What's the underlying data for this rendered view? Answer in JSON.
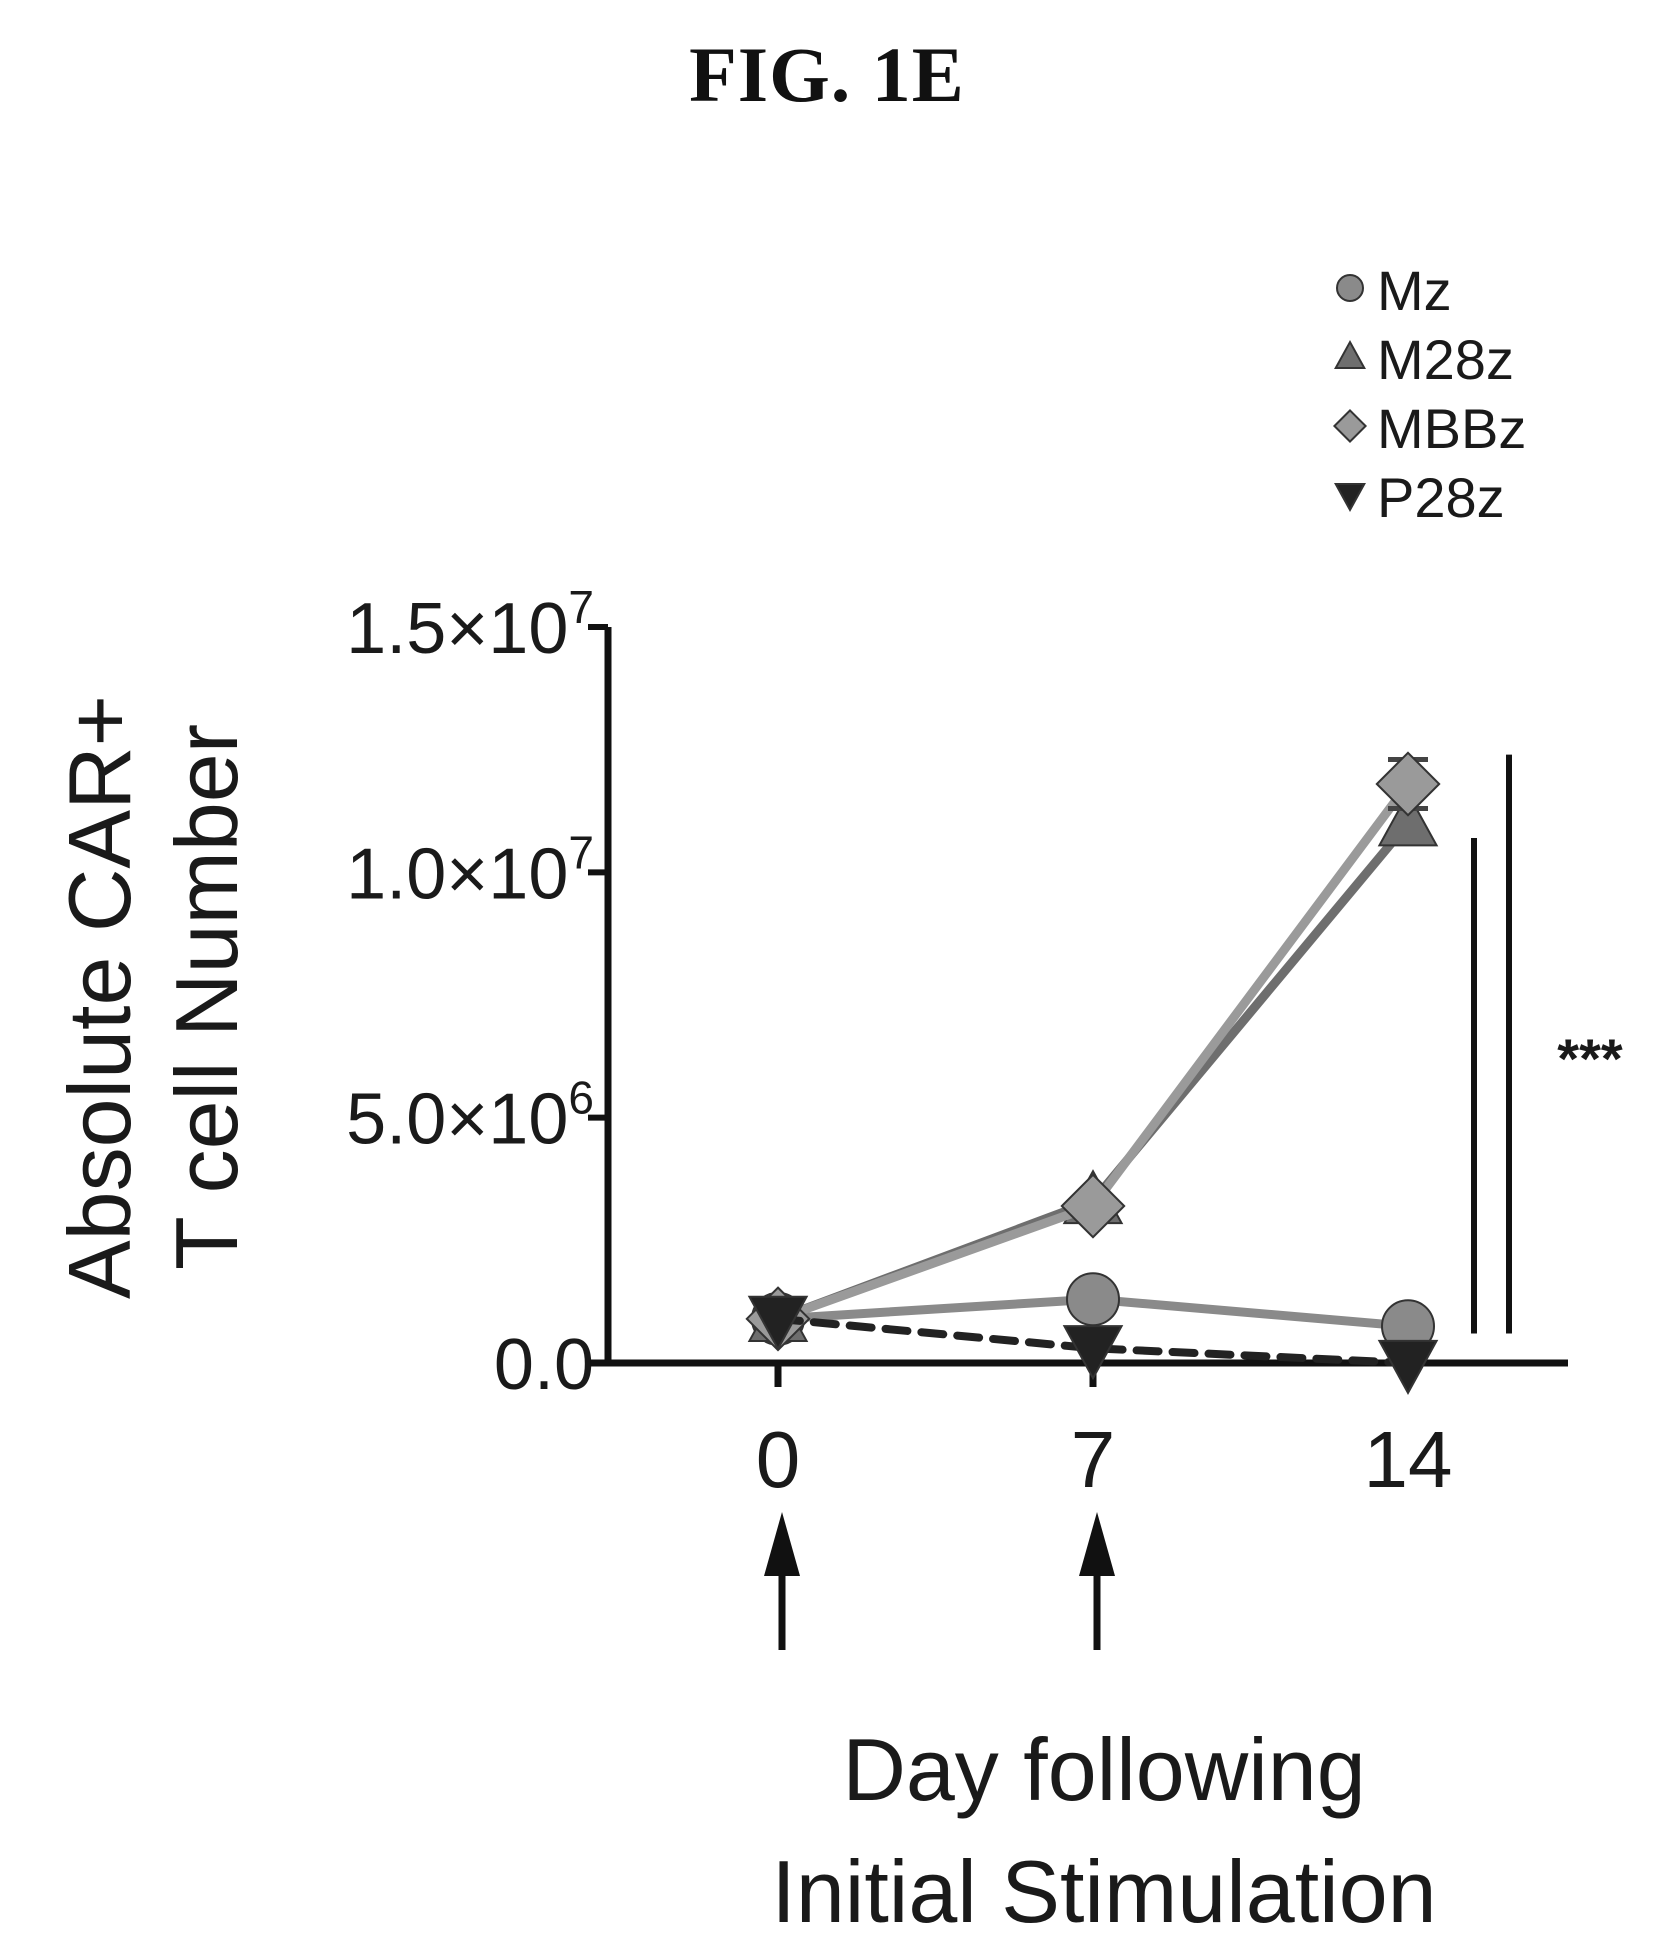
{
  "figure": {
    "label": "FIG. 1E"
  },
  "chart_data": {
    "type": "line",
    "title": "",
    "xlabel_lines": [
      "Day following",
      "Initial Stimulation"
    ],
    "ylabel_lines": [
      "Absolute CAR+",
      "T cell Number"
    ],
    "x": [
      0,
      7,
      14
    ],
    "xticks": [
      "0",
      "7",
      "14"
    ],
    "ylim": [
      0,
      15000000
    ],
    "yticks": [
      {
        "value": 0,
        "label": "0.0",
        "exp": ""
      },
      {
        "value": 5000000,
        "label": "5.0×10",
        "exp": "6"
      },
      {
        "value": 10000000,
        "label": "1.0×10",
        "exp": "7"
      },
      {
        "value": 15000000,
        "label": "1.5×10",
        "exp": "7"
      }
    ],
    "series": [
      {
        "name": "Mz",
        "marker": "circle",
        "dashed": false,
        "color": "#8a8a8a",
        "values": [
          900000,
          1300000,
          750000
        ],
        "errors": [
          0,
          0,
          0
        ]
      },
      {
        "name": "M28z",
        "marker": "triangle-up",
        "dashed": false,
        "color": "#6e6e6e",
        "values": [
          900000,
          3300000,
          11000000
        ],
        "errors": [
          0,
          0,
          0
        ]
      },
      {
        "name": "MBBz",
        "marker": "diamond",
        "dashed": false,
        "color": "#9a9a9a",
        "values": [
          900000,
          3200000,
          11800000
        ],
        "errors": [
          0,
          0,
          500000
        ]
      },
      {
        "name": "P28z",
        "marker": "triangle-down",
        "dashed": true,
        "color": "#222222",
        "values": [
          900000,
          300000,
          0
        ],
        "errors": [
          0,
          0,
          0
        ]
      }
    ],
    "legend_position": "top-right",
    "grid": false,
    "stimulation_arrows_at": [
      0,
      7
    ],
    "annotations": [
      {
        "text": "***"
      }
    ]
  },
  "colors": {
    "axis": "#111111",
    "text": "#1a1a1a"
  }
}
